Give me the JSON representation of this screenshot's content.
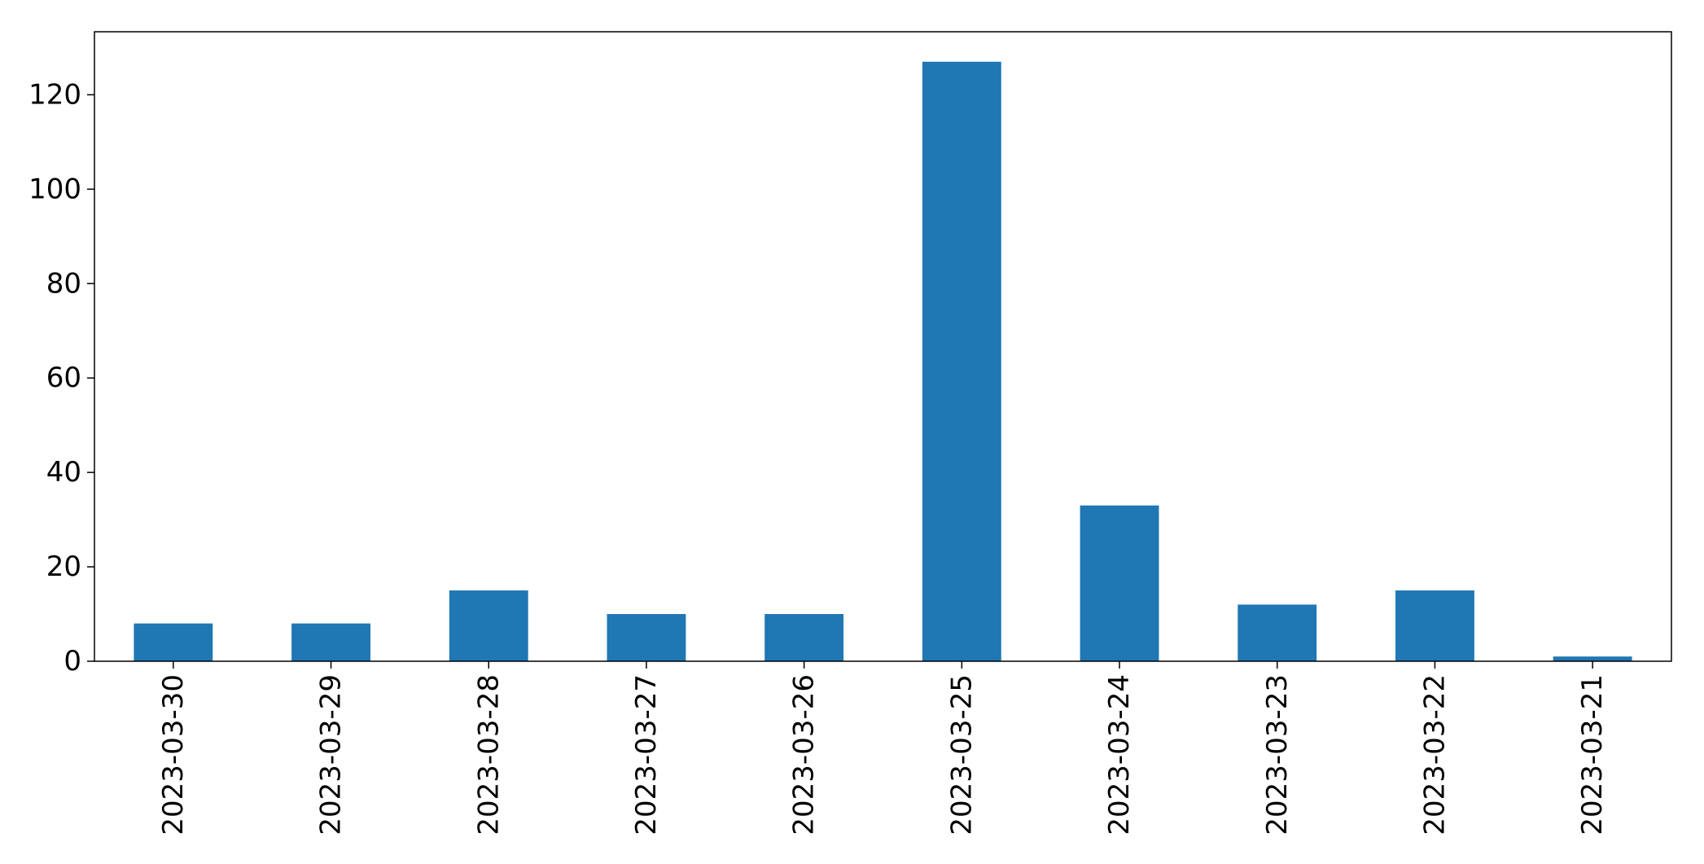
{
  "chart_data": {
    "type": "bar",
    "categories": [
      "2023-03-30",
      "2023-03-29",
      "2023-03-28",
      "2023-03-27",
      "2023-03-26",
      "2023-03-25",
      "2023-03-24",
      "2023-03-23",
      "2023-03-22",
      "2023-03-21"
    ],
    "values": [
      8,
      8,
      15,
      10,
      10,
      127,
      33,
      12,
      15,
      1
    ],
    "title": "",
    "xlabel": "",
    "ylabel": "",
    "ylim": [
      0,
      133.35
    ],
    "yticks": [
      0,
      20,
      40,
      60,
      80,
      100,
      120
    ],
    "grid": false,
    "bar_color": "#1f77b4"
  }
}
